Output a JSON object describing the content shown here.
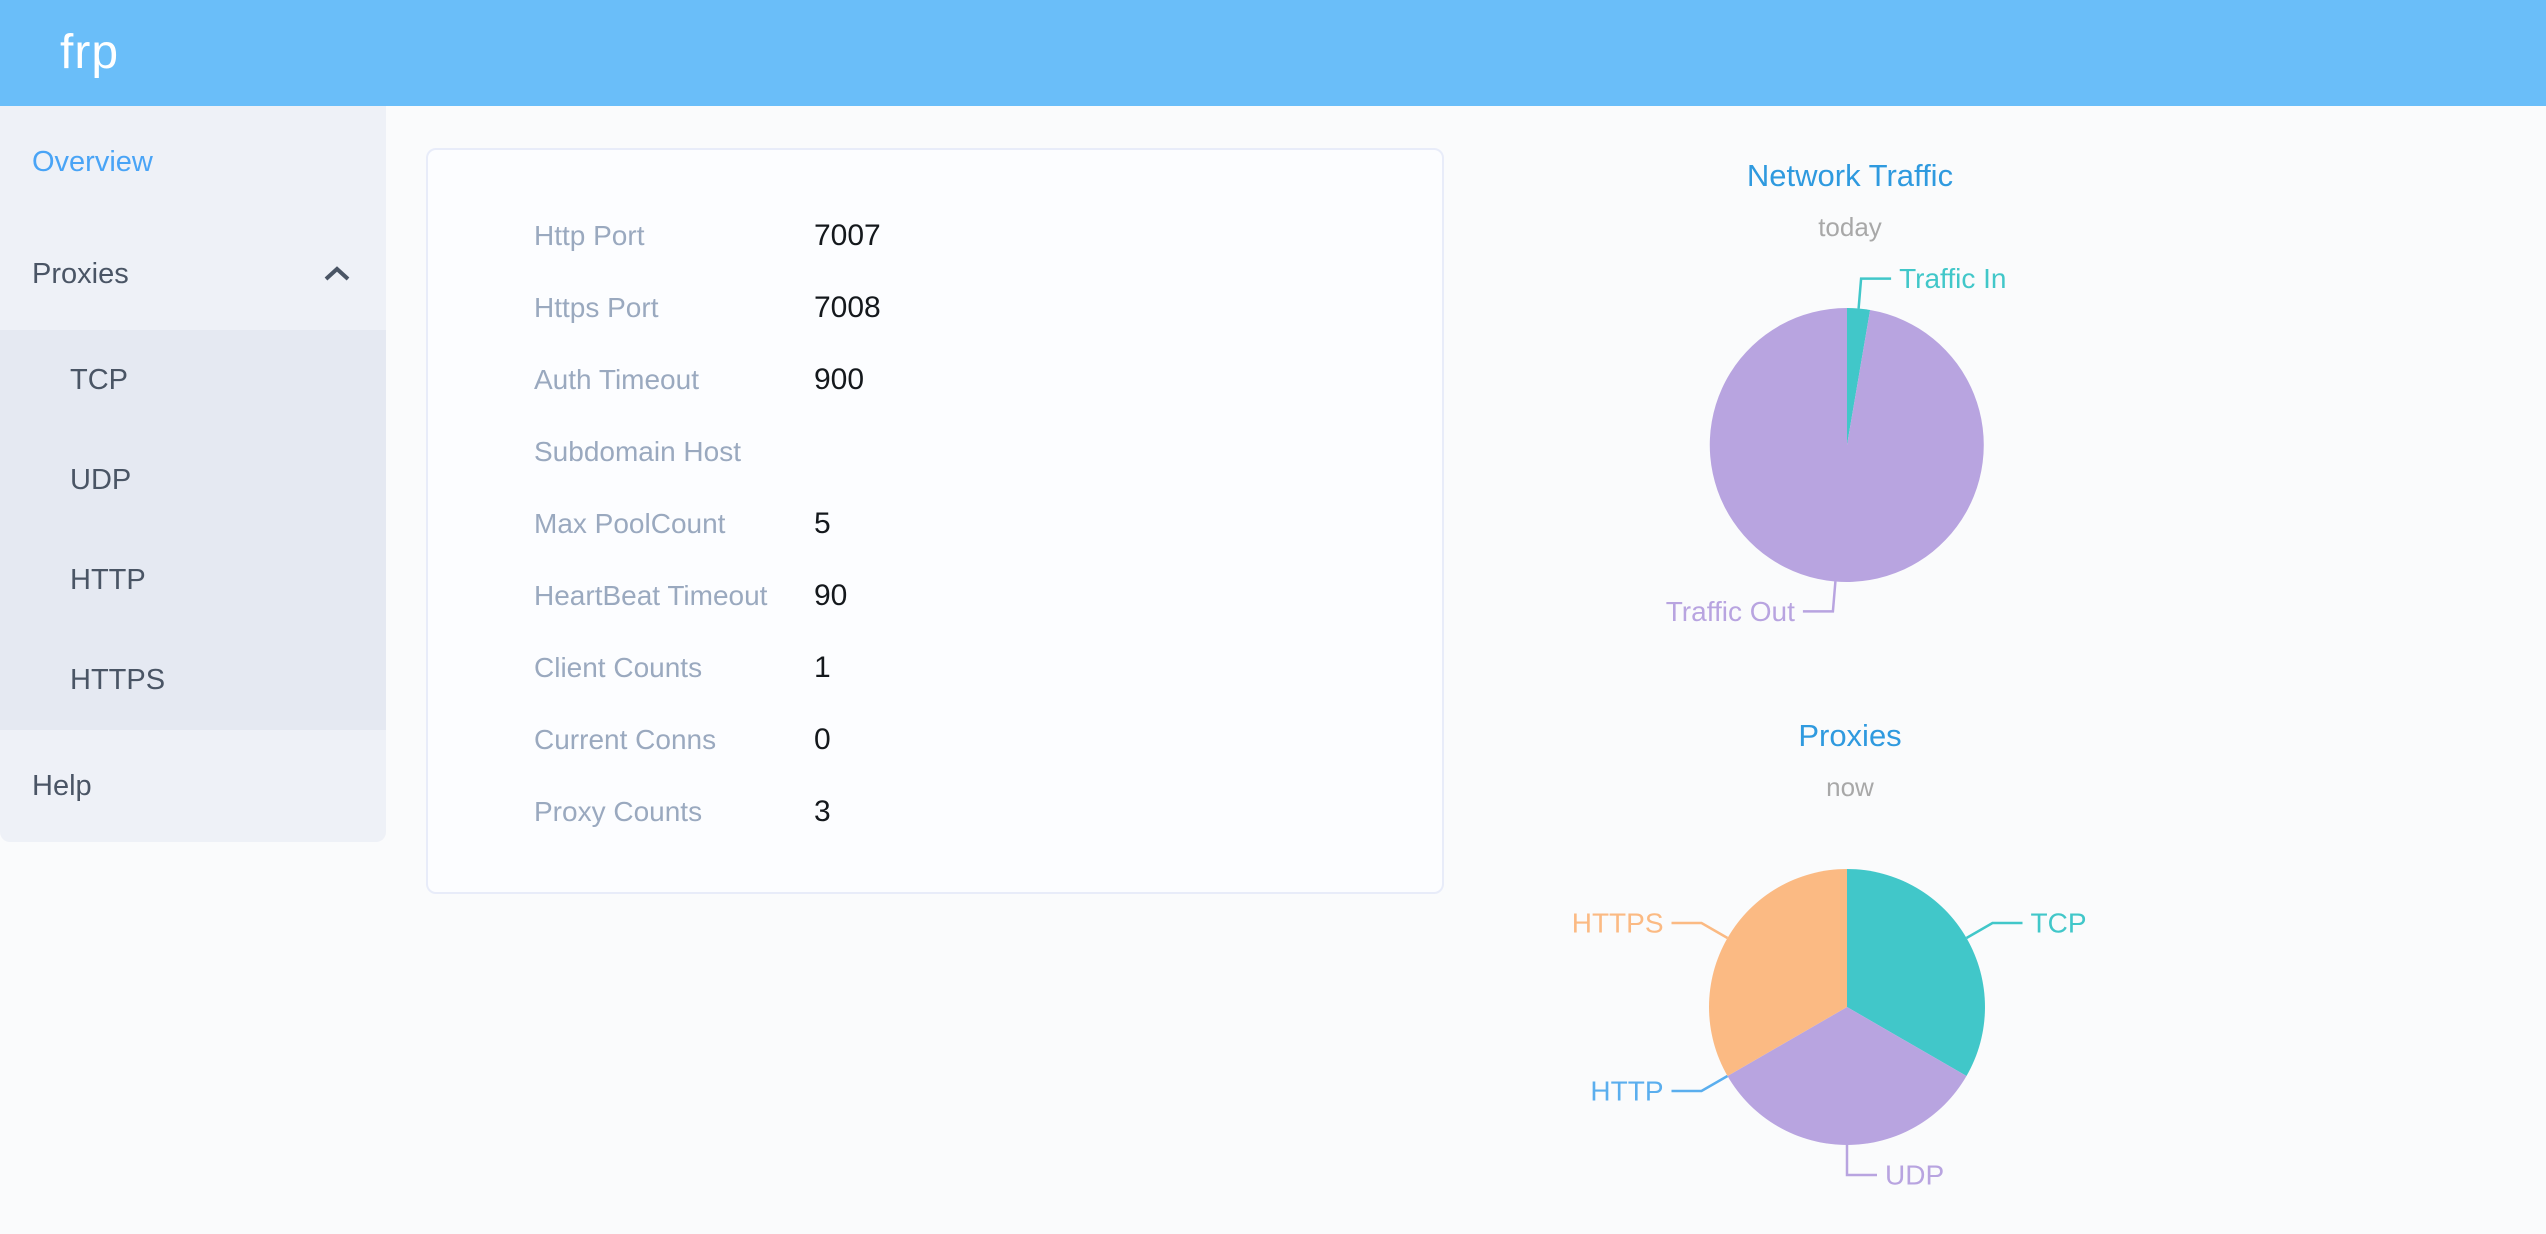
{
  "header": {
    "logo": "frp"
  },
  "sidebar": {
    "top": [
      {
        "label": "Overview",
        "active": true
      },
      {
        "label": "Proxies",
        "expanded": true
      }
    ],
    "submenu": [
      {
        "label": "TCP"
      },
      {
        "label": "UDP"
      },
      {
        "label": "HTTP"
      },
      {
        "label": "HTTPS"
      }
    ],
    "bottom": [
      {
        "label": "Help"
      }
    ]
  },
  "overview_card": {
    "rows": [
      {
        "label": "Http Port",
        "value": "7007"
      },
      {
        "label": "Https Port",
        "value": "7008"
      },
      {
        "label": "Auth Timeout",
        "value": "900"
      },
      {
        "label": "Subdomain Host",
        "value": ""
      },
      {
        "label": "Max PoolCount",
        "value": "5"
      },
      {
        "label": "HeartBeat Timeout",
        "value": "90"
      },
      {
        "label": "Client Counts",
        "value": "1"
      },
      {
        "label": "Current Conns",
        "value": "0"
      },
      {
        "label": "Proxy Counts",
        "value": "3"
      }
    ]
  },
  "chart_data": [
    {
      "type": "pie",
      "title": "Network Traffic",
      "subtitle": "today",
      "legend_position": "callout-labels",
      "start_angle_deg": 0,
      "clockwise": true,
      "unit": "percent (estimated from arc angles)",
      "series": [
        {
          "name": "Traffic In",
          "value": 2.7,
          "color": "#41c7c9"
        },
        {
          "name": "Traffic Out",
          "value": 97.3,
          "color": "#b8a4e0"
        }
      ]
    },
    {
      "type": "pie",
      "title": "Proxies",
      "subtitle": "now",
      "legend_position": "callout-labels",
      "start_angle_deg": 0,
      "clockwise": true,
      "unit": "percent (three equal slices; HTTP slice is zero-width, Proxy Counts = 3)",
      "series": [
        {
          "name": "TCP",
          "value": 33.3,
          "color": "#41c7c9"
        },
        {
          "name": "UDP",
          "value": 33.3,
          "color": "#b8a4e0"
        },
        {
          "name": "HTTP",
          "value": 0,
          "color": "#5aaeee"
        },
        {
          "name": "HTTPS",
          "value": 33.3,
          "color": "#fbba83"
        }
      ]
    }
  ],
  "colors": {
    "header_blue": "#6abef9",
    "active_menu_blue": "#49a4f6",
    "menu_text": "#4a5565",
    "chart_title_blue": "#2f9adf",
    "subtitle_gray": "#a8a8a8",
    "card_label_gray": "#9aa9bf",
    "sidebar_bg": "#eef1f7",
    "submenu_bg": "#e5e9f2"
  }
}
